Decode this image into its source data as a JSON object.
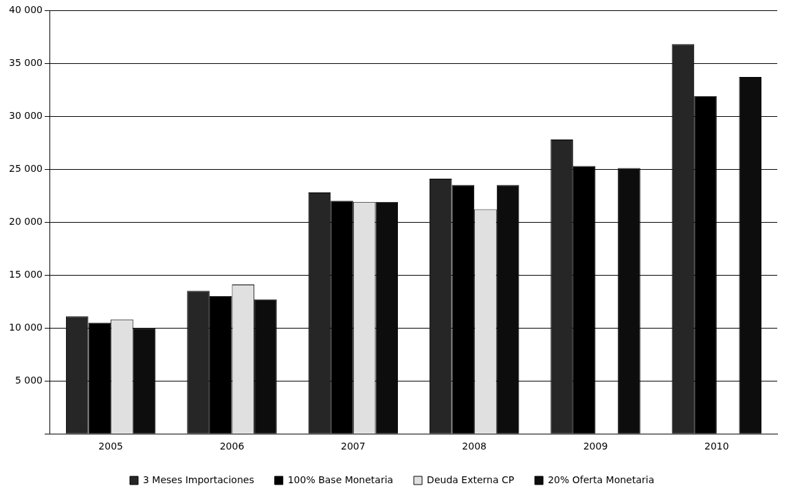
{
  "chart_data": {
    "type": "bar",
    "categories": [
      "2005",
      "2006",
      "2007",
      "2008",
      "2009",
      "2010"
    ],
    "series": [
      {
        "name": "3 Meses Importaciones",
        "color": "#262626",
        "values": [
          11100,
          13500,
          22800,
          24100,
          27800,
          36800
        ]
      },
      {
        "name": "100% Base Monetaria",
        "color": "#000000",
        "values": [
          10500,
          13000,
          22000,
          23500,
          25300,
          31900
        ]
      },
      {
        "name": "Deuda Externa CP",
        "color": "#e0e0e0",
        "values": [
          10800,
          14100,
          21900,
          21200,
          null,
          null
        ]
      },
      {
        "name": "20% Oferta Monetaria",
        "color": "#0d0d0d",
        "values": [
          10000,
          12700,
          21900,
          23500,
          25100,
          33700
        ]
      }
    ],
    "ylim": [
      0,
      40000
    ],
    "yticks": [
      {
        "value": 0,
        "label": null
      },
      {
        "value": 5000,
        "label": "5 000"
      },
      {
        "value": 10000,
        "label": "10 000"
      },
      {
        "value": 15000,
        "label": "15 000"
      },
      {
        "value": 20000,
        "label": "20 000"
      },
      {
        "value": 25000,
        "label": "25 000"
      },
      {
        "value": 30000,
        "label": "30 000"
      },
      {
        "value": 35000,
        "label": "35 000"
      },
      {
        "value": 40000,
        "label": "40 000"
      }
    ],
    "grid": "y",
    "legend": "bottom"
  }
}
